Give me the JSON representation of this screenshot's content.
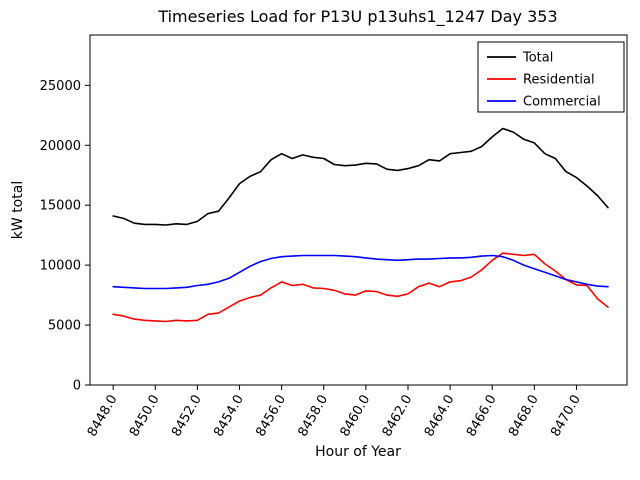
{
  "chart_data": {
    "type": "line",
    "title": "Timeseries Load for P13U p13uhs1_1247  Day 353",
    "xlabel": "Hour of Year",
    "ylabel": "kW total",
    "xlim": [
      8446.9,
      8472.4
    ],
    "ylim": [
      0,
      29200
    ],
    "xticks": [
      8448,
      8450,
      8452,
      8454,
      8456,
      8458,
      8460,
      8462,
      8464,
      8466,
      8468,
      8470
    ],
    "yticks": [
      0,
      5000,
      10000,
      15000,
      20000,
      25000
    ],
    "grid": false,
    "legend_position": "upper right",
    "x": [
      8448.0,
      8448.5,
      8449.0,
      8449.5,
      8450.0,
      8450.5,
      8451.0,
      8451.5,
      8452.0,
      8452.5,
      8453.0,
      8453.5,
      8454.0,
      8454.5,
      8455.0,
      8455.5,
      8456.0,
      8456.5,
      8457.0,
      8457.5,
      8458.0,
      8458.5,
      8459.0,
      8459.5,
      8460.0,
      8460.5,
      8461.0,
      8461.5,
      8462.0,
      8462.5,
      8463.0,
      8463.5,
      8464.0,
      8464.5,
      8465.0,
      8465.5,
      8466.0,
      8466.5,
      8467.0,
      8467.5,
      8468.0,
      8468.5,
      8469.0,
      8469.5,
      8470.0,
      8470.5,
      8471.0,
      8471.5
    ],
    "series": [
      {
        "name": "Total",
        "color": "#000000",
        "values": [
          14100,
          13900,
          13500,
          13400,
          13400,
          13350,
          13450,
          13400,
          13650,
          14300,
          14500,
          15600,
          16800,
          17400,
          17800,
          18800,
          19300,
          18900,
          19200,
          19000,
          18900,
          18400,
          18300,
          18350,
          18500,
          18450,
          18000,
          17900,
          18050,
          18300,
          18800,
          18700,
          19300,
          19400,
          19500,
          19900,
          20700,
          21400,
          21100,
          20500,
          20200,
          19300,
          18900,
          17800,
          17300,
          16600,
          15800,
          14800
        ]
      },
      {
        "name": "Residential",
        "color": "#ff0000",
        "values": [
          5900,
          5750,
          5500,
          5400,
          5350,
          5300,
          5400,
          5350,
          5400,
          5900,
          6000,
          6500,
          7000,
          7300,
          7500,
          8100,
          8600,
          8300,
          8400,
          8100,
          8050,
          7900,
          7600,
          7500,
          7850,
          7800,
          7500,
          7400,
          7600,
          8200,
          8500,
          8200,
          8600,
          8700,
          9000,
          9600,
          10400,
          11000,
          10900,
          10800,
          10900,
          10100,
          9500,
          8800,
          8350,
          8300,
          7200,
          6500
        ]
      },
      {
        "name": "Commercial",
        "color": "#0000ff",
        "values": [
          8200,
          8150,
          8100,
          8050,
          8050,
          8050,
          8100,
          8150,
          8300,
          8400,
          8600,
          8900,
          9400,
          9900,
          10300,
          10550,
          10700,
          10750,
          10800,
          10800,
          10800,
          10800,
          10750,
          10700,
          10600,
          10500,
          10450,
          10400,
          10450,
          10500,
          10500,
          10550,
          10600,
          10600,
          10650,
          10750,
          10800,
          10700,
          10400,
          10000,
          9700,
          9400,
          9100,
          8800,
          8600,
          8400,
          8250,
          8200
        ]
      }
    ]
  }
}
